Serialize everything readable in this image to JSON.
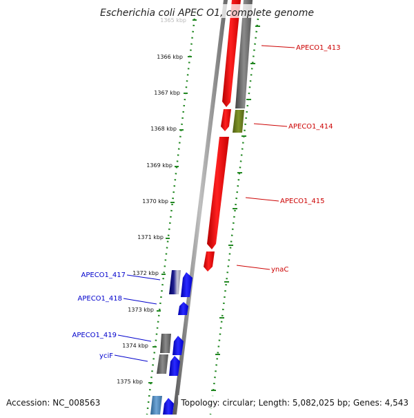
{
  "title": "Escherichia coli APEC O1, complete genome",
  "footer": {
    "accession": "Accession: NC_008563",
    "topology": "Topology: circular; Length: 5,082,025 bp; Genes: 4,543"
  },
  "scale": {
    "unit": "kbp",
    "ticks": [
      "1365 kbp",
      "1366 kbp",
      "1367 kbp",
      "1368 kbp",
      "1369 kbp",
      "1370 kbp",
      "1371 kbp",
      "1372 kbp",
      "1373 kbp",
      "1374 kbp",
      "1375 kbp"
    ]
  },
  "features": {
    "forward_strand": [
      {
        "label": "APECO1_413",
        "color": "#666666"
      },
      {
        "label": "APECO1_414",
        "color": "#6b7f1e"
      },
      {
        "label": "APECO1_415",
        "color": "#ee0000"
      },
      {
        "label": "ynaC",
        "color": "#ee0000"
      }
    ],
    "reverse_strand": [
      {
        "label": "APECO1_417",
        "color": "#0000ee"
      },
      {
        "label": "APECO1_418",
        "color": "#0000ee"
      },
      {
        "label": "APECO1_419",
        "color": "#0000ee"
      },
      {
        "label": "yciF",
        "color": "#0000ee"
      }
    ]
  },
  "colors": {
    "forward": "#ee0000",
    "reverse": "#0000ee",
    "ruler_dots": "#228822",
    "backbone": "#777777"
  }
}
